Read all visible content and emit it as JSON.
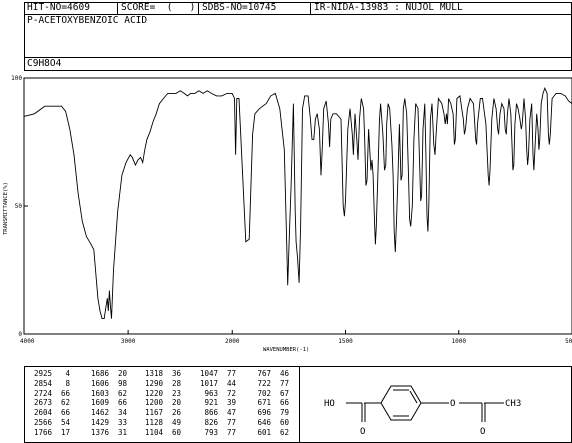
{
  "header": {
    "hit_no": "HIT-NO=4609",
    "score": "SCORE=  (   )",
    "sdbs_no": "SDBS-NO=10745",
    "ir_code": "IR-NIDA-13983 : NUJOL MULL",
    "compound_name": "P-ACETOXYBENZOIC ACID",
    "formula": "C9H8O4"
  },
  "chart_data": {
    "type": "line",
    "title": "",
    "xlabel": "WAVENUMBER(-1)",
    "ylabel": "TRANSMITTANCE(%)",
    "xlim": [
      4000,
      500
    ],
    "ylim": [
      0,
      100
    ],
    "x_ticks": [
      "4000",
      "3000",
      "2000",
      "1500",
      "1000",
      "500"
    ],
    "y_ticks": [
      "100",
      "50",
      "0"
    ],
    "grid": false,
    "series": [
      {
        "name": "",
        "points": [
          [
            4000,
            85
          ],
          [
            3900,
            86
          ],
          [
            3800,
            89
          ],
          [
            3700,
            89
          ],
          [
            3640,
            89
          ],
          [
            3600,
            87
          ],
          [
            3560,
            80
          ],
          [
            3520,
            70
          ],
          [
            3480,
            55
          ],
          [
            3440,
            44
          ],
          [
            3400,
            38
          ],
          [
            3370,
            36
          ],
          [
            3330,
            33
          ],
          [
            3290,
            14
          ],
          [
            3270,
            9
          ],
          [
            3250,
            6
          ],
          [
            3230,
            6
          ],
          [
            3215,
            10
          ],
          [
            3200,
            14
          ],
          [
            3190,
            9
          ],
          [
            3180,
            17
          ],
          [
            3170,
            11
          ],
          [
            3160,
            6
          ],
          [
            3140,
            25
          ],
          [
            3100,
            48
          ],
          [
            3060,
            62
          ],
          [
            3020,
            67
          ],
          [
            2980,
            70
          ],
          [
            2960,
            69
          ],
          [
            2930,
            66
          ],
          [
            2905,
            68
          ],
          [
            2880,
            69
          ],
          [
            2860,
            67
          ],
          [
            2840,
            72
          ],
          [
            2820,
            76
          ],
          [
            2790,
            79
          ],
          [
            2760,
            83
          ],
          [
            2730,
            86
          ],
          [
            2700,
            90
          ],
          [
            2660,
            92
          ],
          [
            2620,
            94
          ],
          [
            2580,
            94
          ],
          [
            2540,
            94
          ],
          [
            2500,
            95
          ],
          [
            2460,
            94
          ],
          [
            2430,
            93
          ],
          [
            2400,
            94
          ],
          [
            2360,
            94
          ],
          [
            2320,
            95
          ],
          [
            2280,
            94
          ],
          [
            2240,
            95
          ],
          [
            2200,
            94
          ],
          [
            2150,
            93
          ],
          [
            2100,
            93
          ],
          [
            2050,
            94
          ],
          [
            2000,
            94
          ],
          [
            1990,
            92
          ],
          [
            1985,
            70
          ],
          [
            1980,
            92
          ],
          [
            1970,
            92
          ],
          [
            1940,
            36
          ],
          [
            1925,
            37
          ],
          [
            1910,
            78
          ],
          [
            1900,
            86
          ],
          [
            1880,
            88
          ],
          [
            1850,
            90
          ],
          [
            1830,
            93
          ],
          [
            1810,
            94
          ],
          [
            1790,
            88
          ],
          [
            1770,
            72
          ],
          [
            1760,
            37
          ],
          [
            1755,
            19
          ],
          [
            1748,
            38
          ],
          [
            1740,
            58
          ],
          [
            1730,
            90
          ],
          [
            1722,
            48
          ],
          [
            1718,
            36
          ],
          [
            1712,
            30
          ],
          [
            1705,
            20
          ],
          [
            1698,
            42
          ],
          [
            1690,
            88
          ],
          [
            1680,
            93
          ],
          [
            1665,
            93
          ],
          [
            1655,
            84
          ],
          [
            1648,
            76
          ],
          [
            1640,
            76
          ],
          [
            1633,
            84
          ],
          [
            1625,
            86
          ],
          [
            1615,
            80
          ],
          [
            1608,
            62
          ],
          [
            1603,
            72
          ],
          [
            1596,
            88
          ],
          [
            1585,
            91
          ],
          [
            1575,
            82
          ],
          [
            1570,
            73
          ],
          [
            1565,
            84
          ],
          [
            1555,
            86
          ],
          [
            1540,
            86
          ],
          [
            1520,
            84
          ],
          [
            1510,
            50
          ],
          [
            1505,
            46
          ],
          [
            1500,
            52
          ],
          [
            1490,
            80
          ],
          [
            1480,
            88
          ],
          [
            1470,
            78
          ],
          [
            1465,
            70
          ],
          [
            1458,
            86
          ],
          [
            1450,
            76
          ],
          [
            1445,
            68
          ],
          [
            1438,
            84
          ],
          [
            1430,
            92
          ],
          [
            1420,
            88
          ],
          [
            1415,
            76
          ],
          [
            1410,
            58
          ],
          [
            1405,
            60
          ],
          [
            1398,
            80
          ],
          [
            1388,
            64
          ],
          [
            1383,
            68
          ],
          [
            1378,
            62
          ],
          [
            1372,
            44
          ],
          [
            1368,
            35
          ],
          [
            1364,
            42
          ],
          [
            1358,
            60
          ],
          [
            1350,
            84
          ],
          [
            1345,
            90
          ],
          [
            1335,
            78
          ],
          [
            1328,
            64
          ],
          [
            1322,
            66
          ],
          [
            1318,
            82
          ],
          [
            1312,
            90
          ],
          [
            1305,
            88
          ],
          [
            1295,
            74
          ],
          [
            1290,
            62
          ],
          [
            1285,
            40
          ],
          [
            1280,
            32
          ],
          [
            1275,
            44
          ],
          [
            1268,
            62
          ],
          [
            1262,
            82
          ],
          [
            1255,
            60
          ],
          [
            1250,
            62
          ],
          [
            1245,
            88
          ],
          [
            1238,
            92
          ],
          [
            1230,
            86
          ],
          [
            1222,
            62
          ],
          [
            1217,
            45
          ],
          [
            1212,
            42
          ],
          [
            1205,
            50
          ],
          [
            1198,
            76
          ],
          [
            1190,
            90
          ],
          [
            1180,
            88
          ],
          [
            1172,
            64
          ],
          [
            1168,
            52
          ],
          [
            1164,
            54
          ],
          [
            1158,
            80
          ],
          [
            1150,
            90
          ],
          [
            1145,
            70
          ],
          [
            1140,
            46
          ],
          [
            1136,
            40
          ],
          [
            1132,
            50
          ],
          [
            1125,
            84
          ],
          [
            1118,
            90
          ],
          [
            1110,
            74
          ],
          [
            1105,
            70
          ],
          [
            1100,
            78
          ],
          [
            1090,
            92
          ],
          [
            1075,
            90
          ],
          [
            1065,
            86
          ],
          [
            1060,
            82
          ],
          [
            1054,
            86
          ],
          [
            1050,
            82
          ],
          [
            1045,
            92
          ],
          [
            1035,
            90
          ],
          [
            1025,
            86
          ],
          [
            1019,
            74
          ],
          [
            1015,
            76
          ],
          [
            1008,
            92
          ],
          [
            995,
            93
          ],
          [
            980,
            84
          ],
          [
            975,
            78
          ],
          [
            970,
            80
          ],
          [
            962,
            88
          ],
          [
            950,
            92
          ],
          [
            935,
            90
          ],
          [
            925,
            76
          ],
          [
            921,
            74
          ],
          [
            917,
            82
          ],
          [
            905,
            92
          ],
          [
            895,
            92
          ],
          [
            880,
            82
          ],
          [
            870,
            62
          ],
          [
            866,
            58
          ],
          [
            862,
            64
          ],
          [
            854,
            84
          ],
          [
            845,
            92
          ],
          [
            835,
            88
          ],
          [
            828,
            80
          ],
          [
            824,
            78
          ],
          [
            818,
            86
          ],
          [
            810,
            90
          ],
          [
            800,
            88
          ],
          [
            795,
            80
          ],
          [
            790,
            78
          ],
          [
            785,
            86
          ],
          [
            778,
            92
          ],
          [
            770,
            86
          ],
          [
            765,
            74
          ],
          [
            761,
            64
          ],
          [
            757,
            66
          ],
          [
            752,
            82
          ],
          [
            745,
            90
          ],
          [
            738,
            88
          ],
          [
            730,
            84
          ],
          [
            724,
            80
          ],
          [
            720,
            82
          ],
          [
            712,
            92
          ],
          [
            705,
            84
          ],
          [
            700,
            72
          ],
          [
            696,
            66
          ],
          [
            692,
            70
          ],
          [
            686,
            84
          ],
          [
            678,
            90
          ],
          [
            672,
            70
          ],
          [
            668,
            64
          ],
          [
            664,
            72
          ],
          [
            656,
            86
          ],
          [
            650,
            80
          ],
          [
            646,
            72
          ],
          [
            642,
            76
          ],
          [
            636,
            90
          ],
          [
            628,
            94
          ],
          [
            620,
            96
          ],
          [
            610,
            94
          ],
          [
            604,
            78
          ],
          [
            600,
            74
          ],
          [
            596,
            78
          ],
          [
            588,
            92
          ],
          [
            570,
            94
          ],
          [
            550,
            94
          ],
          [
            530,
            93
          ],
          [
            515,
            91
          ],
          [
            500,
            90
          ]
        ]
      }
    ]
  },
  "peak_table": {
    "columns": [
      [
        [
          "2925",
          "4"
        ],
        [
          "2854",
          "8"
        ],
        [
          "2724",
          "66"
        ],
        [
          "2673",
          "62"
        ],
        [
          "2604",
          "66"
        ],
        [
          "2566",
          "54"
        ],
        [
          "1766",
          "17"
        ]
      ],
      [
        [
          "1686",
          "20"
        ],
        [
          "1606",
          "98"
        ],
        [
          "1603",
          "62"
        ],
        [
          "1609",
          "66"
        ],
        [
          "1462",
          "34"
        ],
        [
          "1429",
          "33"
        ],
        [
          "1376",
          "31"
        ]
      ],
      [
        [
          "1318",
          "36"
        ],
        [
          "1290",
          "28"
        ],
        [
          "1220",
          "23"
        ],
        [
          "1200",
          "20"
        ],
        [
          "1167",
          "26"
        ],
        [
          "1128",
          "49"
        ],
        [
          "1104",
          "60"
        ]
      ],
      [
        [
          "1047",
          "77"
        ],
        [
          "1017",
          "44"
        ],
        [
          "963",
          "72"
        ],
        [
          "921",
          "39"
        ],
        [
          "866",
          "47"
        ],
        [
          "826",
          "77"
        ],
        [
          "793",
          "77"
        ]
      ],
      [
        [
          "767",
          "46"
        ],
        [
          "722",
          "77"
        ],
        [
          "702",
          "67"
        ],
        [
          "671",
          "66"
        ],
        [
          "696",
          "79"
        ],
        [
          "646",
          "60"
        ],
        [
          "601",
          "62"
        ]
      ]
    ]
  },
  "structure": {
    "hydroxyl": "HO",
    "ester_oxygen": "O",
    "methyl": "CH3",
    "carbonyl_left": "O",
    "carbonyl_right": "O"
  }
}
